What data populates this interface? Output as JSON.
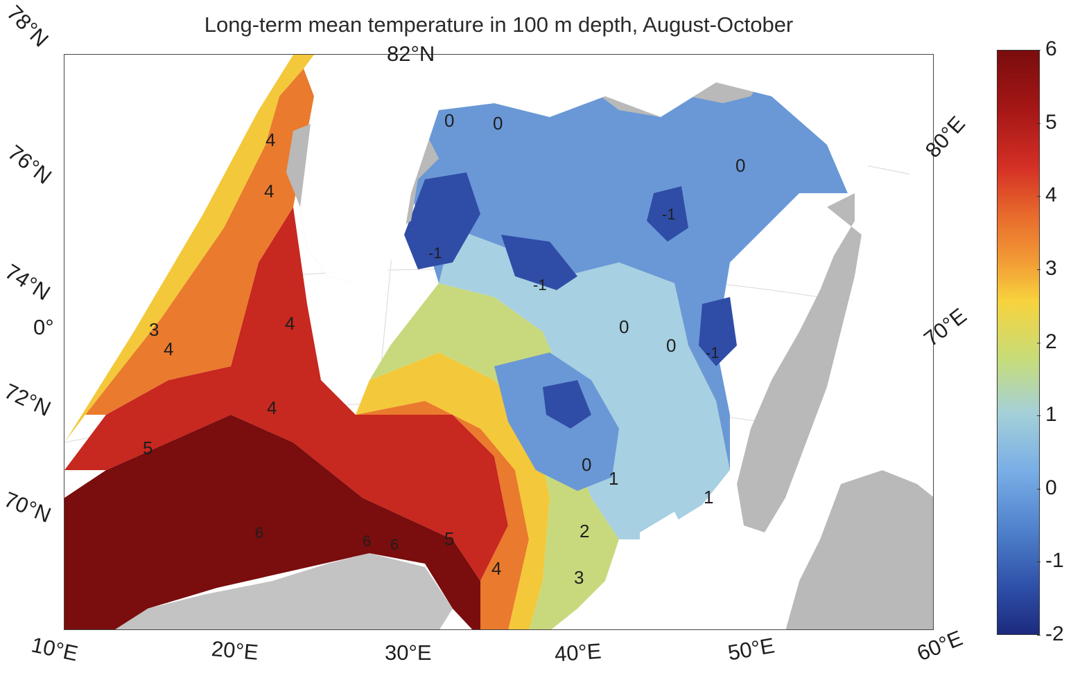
{
  "title": "Long-term mean temperature in 100 m depth, August-October",
  "latitude_labels": {
    "lat78": "78°N",
    "lat82": "82°N",
    "lat76": "76°N",
    "lat74": "74°N",
    "lon0": "0°",
    "lat72": "72°N",
    "lat70": "70°N"
  },
  "longitude_labels": {
    "lon10": "10°E",
    "lon20": "20°E",
    "lon30": "30°E",
    "lon40": "40°E",
    "lon50": "50°E",
    "lon60": "60°E",
    "lon70": "70°E",
    "lon80": "80°E"
  },
  "contour_labels": {
    "c1": "4",
    "c2": "4",
    "c3": "3",
    "c4": "4",
    "c5": "4",
    "c6": "4",
    "c7": "5",
    "c8": "6",
    "c9": "6",
    "c10": "6",
    "c11": "5",
    "c12": "4",
    "c13": "3",
    "c14": "2",
    "c15": "1",
    "c16": "0",
    "c17": "1",
    "c18": "0",
    "c19": "0",
    "c20": "-1",
    "c21": "0",
    "c22": "0",
    "c23": "-1",
    "c24": "-1",
    "c25": "-1",
    "c26": "0",
    "c27": "-1"
  },
  "colorbar": {
    "ticks": [
      "6",
      "5",
      "4",
      "3",
      "2",
      "1",
      "0",
      "-1",
      "-2"
    ],
    "colors": {
      "max": "#7a0d0d",
      "warm": "#d43025",
      "mid": "#f7d33d",
      "cool": "#79aee6",
      "min": "#1c2a7d"
    },
    "range": [
      -2,
      6
    ]
  },
  "land_color": "#b9b9b9"
}
